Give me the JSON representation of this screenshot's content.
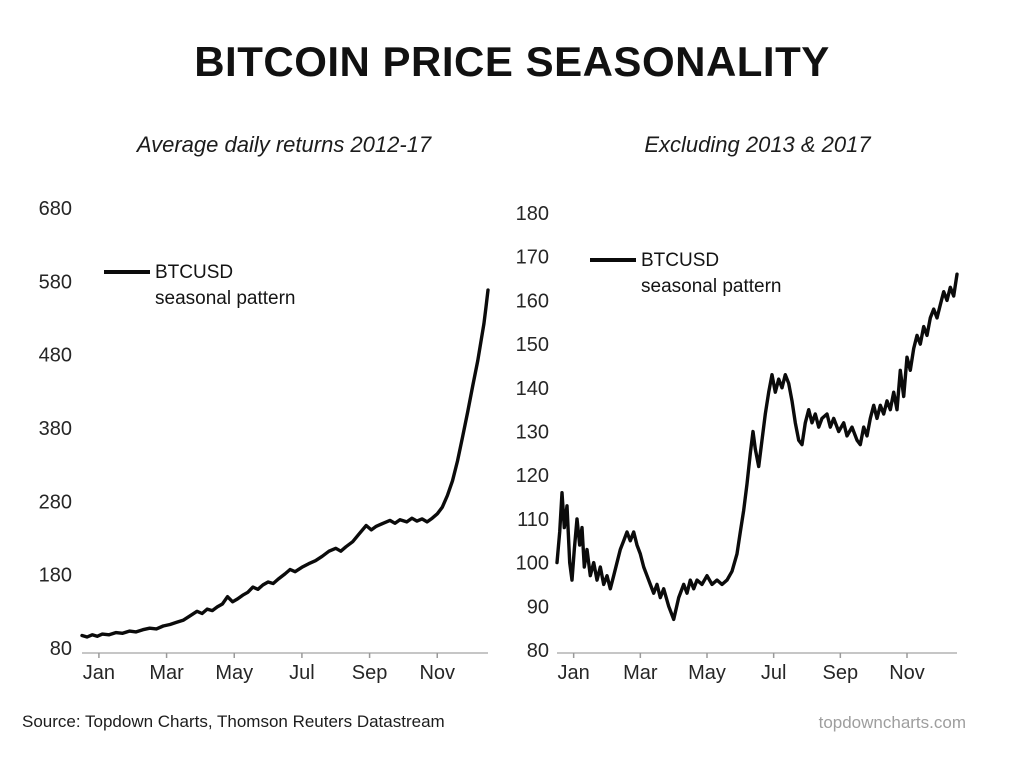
{
  "title": "BITCOIN PRICE SEASONALITY",
  "footer": {
    "source": "Source: Topdown Charts, Thomson Reuters Datastream",
    "site": "topdowncharts.com"
  },
  "colors": {
    "line": "#0b0b0b",
    "axis": "#b4b4b4",
    "tick": "#9a9a9a",
    "text": "#262626",
    "site_gray": "#9e9e9e"
  },
  "chart_data": [
    {
      "type": "line",
      "title": "Average daily returns 2012-17",
      "legend": {
        "name": "BTCUSD",
        "line2": "seasonal pattern",
        "position": "upper-left"
      },
      "ylabel": "",
      "xlabel": "",
      "ylim": [
        80,
        680
      ],
      "yticks": [
        80,
        180,
        280,
        380,
        480,
        580,
        680
      ],
      "xticks": [
        {
          "label": "Jan",
          "month": 0
        },
        {
          "label": "Mar",
          "month": 2
        },
        {
          "label": "May",
          "month": 4
        },
        {
          "label": "Jul",
          "month": 6
        },
        {
          "label": "Sep",
          "month": 8
        },
        {
          "label": "Nov",
          "month": 10
        }
      ],
      "grid": false,
      "series": [
        {
          "name": "BTCUSD seasonal pattern",
          "x_unit": "month (0 = Jan 1, 12 = Dec 31)",
          "points": [
            [
              0,
              97
            ],
            [
              0.15,
              95
            ],
            [
              0.3,
              98
            ],
            [
              0.45,
              96
            ],
            [
              0.6,
              99
            ],
            [
              0.8,
              98
            ],
            [
              1,
              101
            ],
            [
              1.2,
              100
            ],
            [
              1.4,
              103
            ],
            [
              1.6,
              102
            ],
            [
              1.8,
              105
            ],
            [
              2,
              107
            ],
            [
              2.2,
              106
            ],
            [
              2.4,
              110
            ],
            [
              2.6,
              112
            ],
            [
              2.8,
              115
            ],
            [
              3,
              118
            ],
            [
              3.2,
              124
            ],
            [
              3.4,
              130
            ],
            [
              3.55,
              127
            ],
            [
              3.7,
              133
            ],
            [
              3.85,
              131
            ],
            [
              4,
              136
            ],
            [
              4.15,
              140
            ],
            [
              4.3,
              150
            ],
            [
              4.45,
              143
            ],
            [
              4.6,
              147
            ],
            [
              4.75,
              152
            ],
            [
              4.9,
              156
            ],
            [
              5.05,
              163
            ],
            [
              5.2,
              160
            ],
            [
              5.35,
              166
            ],
            [
              5.5,
              170
            ],
            [
              5.65,
              168
            ],
            [
              5.8,
              174
            ],
            [
              6,
              181
            ],
            [
              6.15,
              187
            ],
            [
              6.3,
              184
            ],
            [
              6.5,
              190
            ],
            [
              6.7,
              195
            ],
            [
              6.9,
              199
            ],
            [
              7.1,
              205
            ],
            [
              7.3,
              212
            ],
            [
              7.5,
              216
            ],
            [
              7.65,
              212
            ],
            [
              7.8,
              218
            ],
            [
              8,
              225
            ],
            [
              8.2,
              236
            ],
            [
              8.4,
              247
            ],
            [
              8.55,
              241
            ],
            [
              8.7,
              246
            ],
            [
              8.9,
              250
            ],
            [
              9.1,
              254
            ],
            [
              9.25,
              250
            ],
            [
              9.4,
              255
            ],
            [
              9.6,
              252
            ],
            [
              9.75,
              257
            ],
            [
              9.9,
              253
            ],
            [
              10.05,
              256
            ],
            [
              10.2,
              252
            ],
            [
              10.35,
              257
            ],
            [
              10.5,
              263
            ],
            [
              10.65,
              272
            ],
            [
              10.8,
              288
            ],
            [
              10.95,
              308
            ],
            [
              11.1,
              335
            ],
            [
              11.25,
              368
            ],
            [
              11.4,
              402
            ],
            [
              11.55,
              438
            ],
            [
              11.7,
              472
            ],
            [
              11.8,
              500
            ],
            [
              11.88,
              522
            ],
            [
              11.94,
              545
            ],
            [
              12,
              568
            ]
          ]
        }
      ]
    },
    {
      "type": "line",
      "title": "Excluding 2013 & 2017",
      "legend": {
        "name": "BTCUSD",
        "line2": "seasonal pattern",
        "position": "upper-left"
      },
      "ylabel": "",
      "xlabel": "",
      "ylim": [
        80,
        180
      ],
      "yticks": [
        80,
        90,
        100,
        110,
        120,
        130,
        140,
        150,
        160,
        170,
        180
      ],
      "xticks": [
        {
          "label": "Jan",
          "month": 0
        },
        {
          "label": "Mar",
          "month": 2
        },
        {
          "label": "May",
          "month": 4
        },
        {
          "label": "Jul",
          "month": 6
        },
        {
          "label": "Sep",
          "month": 8
        },
        {
          "label": "Nov",
          "month": 10
        }
      ],
      "grid": false,
      "series": [
        {
          "name": "BTCUSD seasonal pattern",
          "x_unit": "month (0 = Jan 1, 12 = Dec 31)",
          "points": [
            [
              0,
              100
            ],
            [
              0.08,
              107
            ],
            [
              0.15,
              116
            ],
            [
              0.22,
              108
            ],
            [
              0.3,
              113
            ],
            [
              0.38,
              100
            ],
            [
              0.45,
              96
            ],
            [
              0.52,
              103
            ],
            [
              0.6,
              110
            ],
            [
              0.68,
              104
            ],
            [
              0.75,
              108
            ],
            [
              0.82,
              99
            ],
            [
              0.9,
              103
            ],
            [
              1,
              97
            ],
            [
              1.1,
              100
            ],
            [
              1.2,
              96
            ],
            [
              1.3,
              99
            ],
            [
              1.4,
              95
            ],
            [
              1.5,
              97
            ],
            [
              1.6,
              94
            ],
            [
              1.7,
              97
            ],
            [
              1.8,
              100
            ],
            [
              1.9,
              103
            ],
            [
              2,
              105
            ],
            [
              2.1,
              107
            ],
            [
              2.2,
              105
            ],
            [
              2.3,
              107
            ],
            [
              2.4,
              104
            ],
            [
              2.5,
              102
            ],
            [
              2.6,
              99
            ],
            [
              2.7,
              97
            ],
            [
              2.8,
              95
            ],
            [
              2.9,
              93
            ],
            [
              3,
              95
            ],
            [
              3.1,
              92
            ],
            [
              3.2,
              94
            ],
            [
              3.35,
              90
            ],
            [
              3.5,
              87
            ],
            [
              3.65,
              92
            ],
            [
              3.8,
              95
            ],
            [
              3.9,
              93
            ],
            [
              4,
              96
            ],
            [
              4.1,
              94
            ],
            [
              4.2,
              96
            ],
            [
              4.35,
              95
            ],
            [
              4.5,
              97
            ],
            [
              4.65,
              95
            ],
            [
              4.8,
              96
            ],
            [
              4.95,
              95
            ],
            [
              5.1,
              96
            ],
            [
              5.25,
              98
            ],
            [
              5.4,
              102
            ],
            [
              5.5,
              107
            ],
            [
              5.6,
              112
            ],
            [
              5.7,
              118
            ],
            [
              5.8,
              125
            ],
            [
              5.88,
              130
            ],
            [
              5.95,
              126
            ],
            [
              6.05,
              122
            ],
            [
              6.15,
              128
            ],
            [
              6.25,
              134
            ],
            [
              6.35,
              139
            ],
            [
              6.45,
              143
            ],
            [
              6.55,
              139
            ],
            [
              6.65,
              142
            ],
            [
              6.75,
              140
            ],
            [
              6.85,
              143
            ],
            [
              6.95,
              141
            ],
            [
              7.05,
              137
            ],
            [
              7.15,
              132
            ],
            [
              7.25,
              128
            ],
            [
              7.35,
              127
            ],
            [
              7.45,
              132
            ],
            [
              7.55,
              135
            ],
            [
              7.65,
              132
            ],
            [
              7.75,
              134
            ],
            [
              7.85,
              131
            ],
            [
              7.95,
              133
            ],
            [
              8.1,
              134
            ],
            [
              8.2,
              131
            ],
            [
              8.3,
              133
            ],
            [
              8.45,
              130
            ],
            [
              8.6,
              132
            ],
            [
              8.7,
              129
            ],
            [
              8.85,
              131
            ],
            [
              9,
              128
            ],
            [
              9.1,
              127
            ],
            [
              9.2,
              131
            ],
            [
              9.3,
              129
            ],
            [
              9.4,
              133
            ],
            [
              9.5,
              136
            ],
            [
              9.6,
              133
            ],
            [
              9.7,
              136
            ],
            [
              9.8,
              134
            ],
            [
              9.9,
              137
            ],
            [
              10,
              135
            ],
            [
              10.1,
              139
            ],
            [
              10.2,
              135
            ],
            [
              10.3,
              144
            ],
            [
              10.4,
              138
            ],
            [
              10.5,
              147
            ],
            [
              10.6,
              144
            ],
            [
              10.7,
              149
            ],
            [
              10.8,
              152
            ],
            [
              10.9,
              150
            ],
            [
              11,
              154
            ],
            [
              11.1,
              152
            ],
            [
              11.2,
              156
            ],
            [
              11.3,
              158
            ],
            [
              11.4,
              156
            ],
            [
              11.5,
              159
            ],
            [
              11.6,
              162
            ],
            [
              11.7,
              160
            ],
            [
              11.8,
              163
            ],
            [
              11.9,
              161
            ],
            [
              12,
              166
            ]
          ]
        }
      ]
    }
  ]
}
